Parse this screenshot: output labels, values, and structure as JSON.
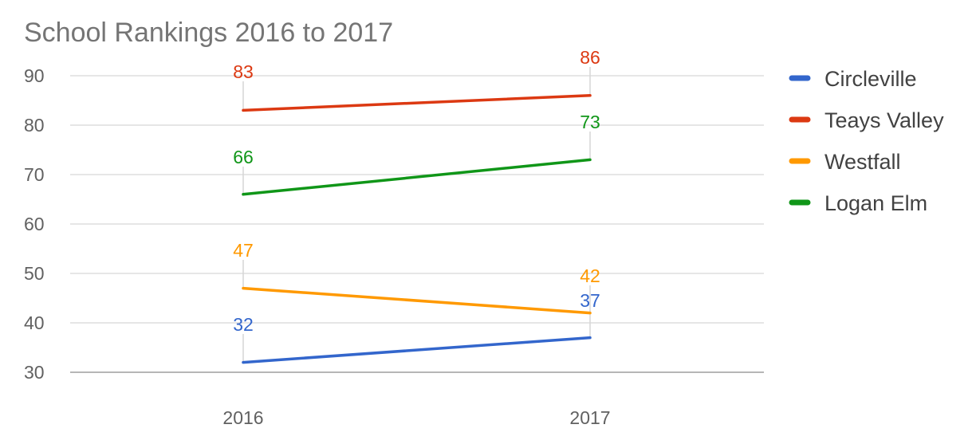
{
  "chart_data": {
    "type": "line",
    "title": "School Rankings 2016 to 2017",
    "xlabel": "",
    "ylabel": "",
    "categories": [
      "2016",
      "2017"
    ],
    "ylim": [
      30,
      90
    ],
    "yticks": [
      30,
      40,
      50,
      60,
      70,
      80,
      90
    ],
    "grid": true,
    "legend": "right",
    "data_labels": true,
    "series": [
      {
        "name": "Circleville",
        "color": "#3366cc",
        "values": [
          32,
          37
        ]
      },
      {
        "name": "Teays Valley",
        "color": "#dc3912",
        "values": [
          83,
          86
        ]
      },
      {
        "name": "Westfall",
        "color": "#ff9900",
        "values": [
          47,
          42
        ]
      },
      {
        "name": "Logan Elm",
        "color": "#109618",
        "values": [
          66,
          73
        ]
      }
    ]
  }
}
